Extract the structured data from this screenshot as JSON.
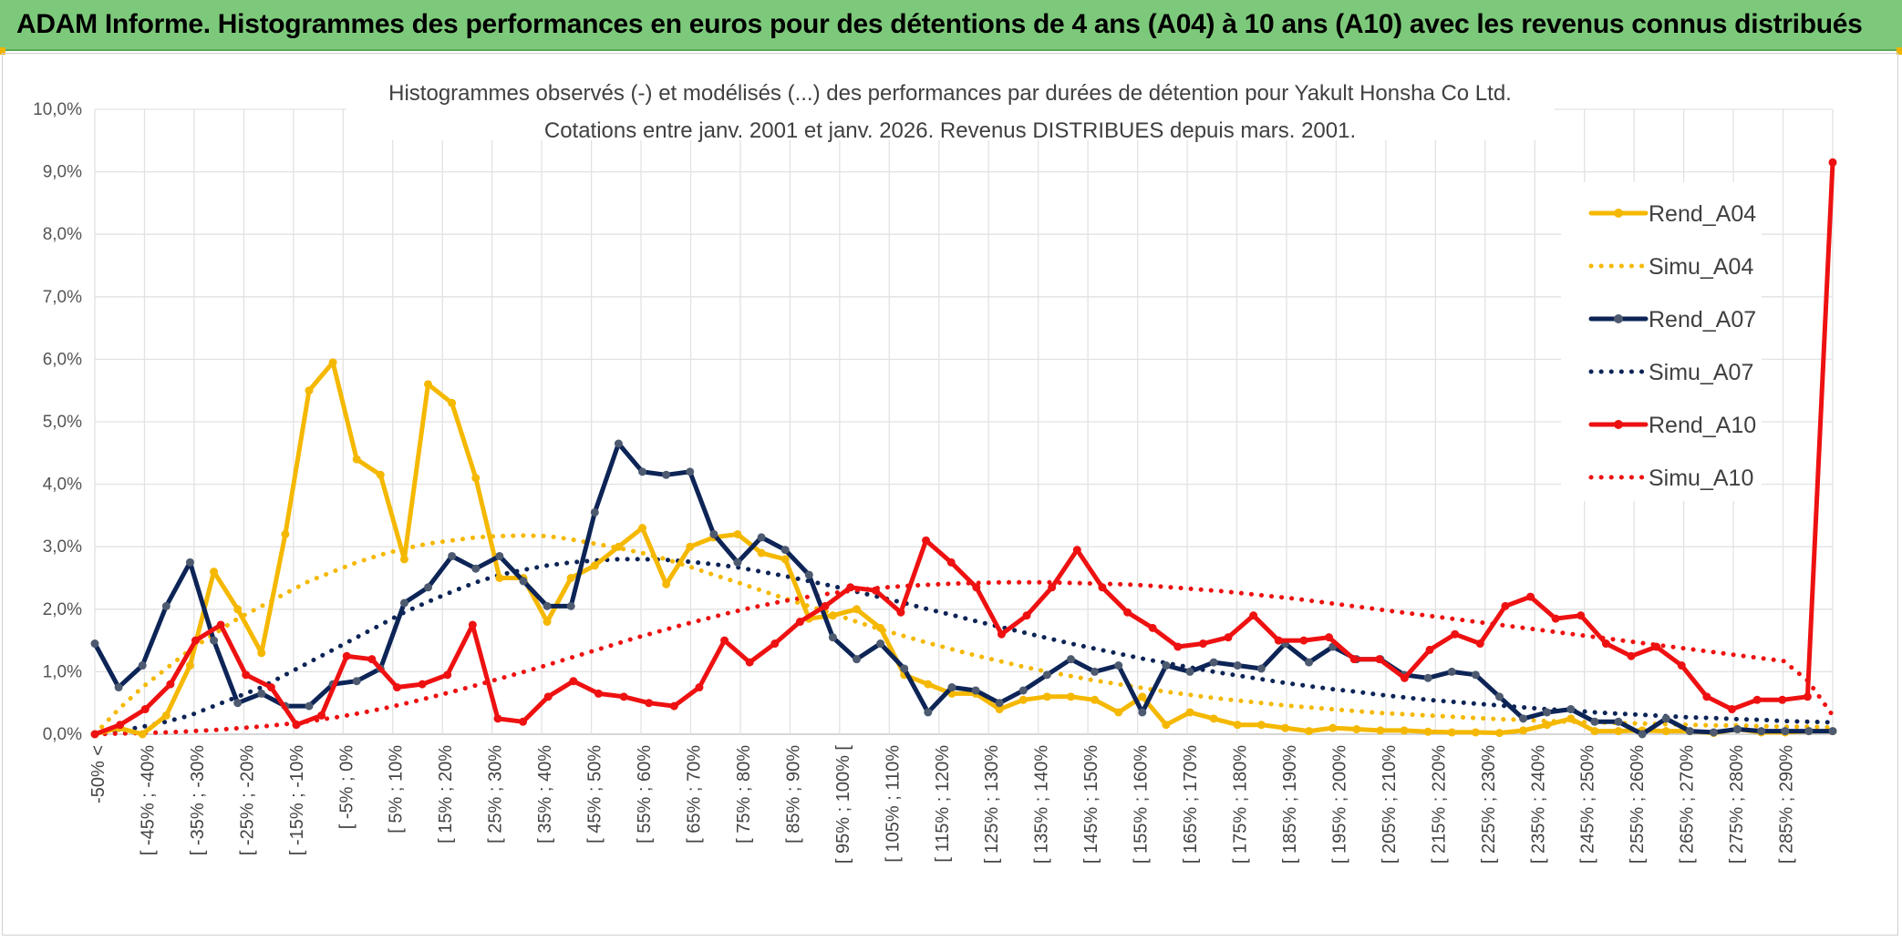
{
  "banner": {
    "title": "ADAM Informe. Histogrammes des performances en euros pour des détentions de 4 ans (A04) à 10 ans (A10) avec les revenus connus distribués"
  },
  "chart_data": {
    "type": "line",
    "title": "Histogrammes observés (-) et modélisés (...) des performances par durées de détention pour Yakult Honsha Co Ltd.",
    "subtitle": "Cotations entre janv. 2001 et janv. 2026. Revenus DISTRIBUES depuis mars. 2001.",
    "ylim": [
      0,
      10
    ],
    "yticks": [
      "0,0%",
      "1,0%",
      "2,0%",
      "3,0%",
      "4,0%",
      "5,0%",
      "6,0%",
      "7,0%",
      "8,0%",
      "9,0%",
      "10,0%"
    ],
    "xticklabels": [
      "-50% <",
      "[ -45% ; -40%",
      "[ -35% ; -30%",
      "[ -25% ; -20%",
      "[ -15% ; -10%",
      "[ -5% ; 0%",
      "[ 5% ; 10%",
      "[ 15% ; 20%",
      "[ 25% ; 30%",
      "[ 35% ; 40%",
      "[ 45% ; 50%",
      "[ 55% ; 60%",
      "[ 65% ; 70%",
      "[ 75% ; 80%",
      "[ 85% ; 90%",
      "[ 95% ; 100% [",
      "[ 105% ; 110%",
      "[ 115% ; 120%",
      "[ 125% ; 130%",
      "[ 135% ; 140%",
      "[ 145% ; 150%",
      "[ 155% ; 160%",
      "[ 165% ; 170%",
      "[ 175% ; 180%",
      "[ 185% ; 190%",
      "[ 195% ; 200%",
      "[ 205% ; 210%",
      "[ 215% ; 220%",
      "[ 225% ; 230%",
      "[ 235% ; 240%",
      "[ 245% ; 250%",
      "[ 255% ; 260%",
      "[ 265% ; 270%",
      "[ 275% ; 280%",
      "[ 285% ; 290%"
    ],
    "grid": true,
    "legend_position": "right",
    "series": [
      {
        "name": "Rend_A04",
        "style": "solid",
        "color": "#f5b800",
        "values": [
          0.0,
          0.1,
          0.0,
          0.3,
          1.1,
          2.6,
          2.0,
          1.3,
          3.2,
          5.5,
          5.95,
          4.4,
          4.15,
          2.8,
          5.6,
          5.3,
          4.1,
          2.5,
          2.5,
          1.8,
          2.5,
          2.7,
          3.0,
          3.3,
          2.4,
          3.0,
          3.15,
          3.2,
          2.9,
          2.8,
          1.85,
          1.9,
          2.0,
          1.7,
          0.95,
          0.8,
          0.65,
          0.65,
          0.4,
          0.55,
          0.6,
          0.6,
          0.55,
          0.35,
          0.6,
          0.15,
          0.35,
          0.25,
          0.15,
          0.15,
          0.1,
          0.05,
          0.1,
          0.08,
          0.06,
          0.06,
          0.04,
          0.03,
          0.03,
          0.02,
          0.06,
          0.15,
          0.25,
          0.05,
          0.05,
          0.06,
          0.05,
          0.05,
          0.02,
          0.08,
          0.03,
          0.03,
          0.05,
          0.05
        ]
      },
      {
        "name": "Simu_A04",
        "style": "dotted",
        "color": "#f5b800",
        "values": [
          0.0,
          0.4,
          0.75,
          1.05,
          1.35,
          1.6,
          1.85,
          2.05,
          2.25,
          2.45,
          2.6,
          2.75,
          2.87,
          2.97,
          3.05,
          3.1,
          3.15,
          3.17,
          3.18,
          3.17,
          3.12,
          3.05,
          2.98,
          2.9,
          2.8,
          2.68,
          2.55,
          2.43,
          2.3,
          2.17,
          2.05,
          1.93,
          1.8,
          1.68,
          1.57,
          1.46,
          1.36,
          1.26,
          1.17,
          1.08,
          1.0,
          0.93,
          0.86,
          0.8,
          0.74,
          0.68,
          0.63,
          0.58,
          0.54,
          0.5,
          0.46,
          0.43,
          0.4,
          0.37,
          0.34,
          0.32,
          0.3,
          0.28,
          0.26,
          0.24,
          0.23,
          0.21,
          0.2,
          0.19,
          0.18,
          0.17,
          0.16,
          0.15,
          0.14,
          0.14,
          0.13,
          0.12,
          0.12,
          0.11
        ]
      },
      {
        "name": "Rend_A07",
        "style": "solid",
        "color": "#0d2456",
        "values": [
          1.45,
          0.75,
          1.1,
          2.05,
          2.75,
          1.5,
          0.5,
          0.65,
          0.45,
          0.45,
          0.8,
          0.85,
          1.05,
          2.1,
          2.35,
          2.85,
          2.65,
          2.85,
          2.45,
          2.05,
          2.05,
          3.55,
          4.65,
          4.2,
          4.15,
          4.2,
          3.2,
          2.75,
          3.15,
          2.95,
          2.55,
          1.55,
          1.2,
          1.45,
          1.05,
          0.35,
          0.75,
          0.7,
          0.5,
          0.7,
          0.95,
          1.2,
          1.0,
          1.1,
          0.35,
          1.1,
          1.0,
          1.15,
          1.1,
          1.05,
          1.45,
          1.15,
          1.4,
          1.2,
          1.2,
          0.95,
          0.9,
          1.0,
          0.95,
          0.6,
          0.25,
          0.35,
          0.4,
          0.2,
          0.2,
          0.0,
          0.25,
          0.05,
          0.03,
          0.08,
          0.05,
          0.05,
          0.05,
          0.05
        ]
      },
      {
        "name": "Simu_A07",
        "style": "dotted",
        "color": "#0d2456",
        "values": [
          0.0,
          0.05,
          0.12,
          0.2,
          0.3,
          0.45,
          0.6,
          0.75,
          0.95,
          1.15,
          1.35,
          1.55,
          1.75,
          1.95,
          2.12,
          2.28,
          2.43,
          2.55,
          2.63,
          2.7,
          2.75,
          2.78,
          2.8,
          2.8,
          2.79,
          2.76,
          2.72,
          2.67,
          2.6,
          2.53,
          2.45,
          2.37,
          2.28,
          2.19,
          2.1,
          2.0,
          1.91,
          1.81,
          1.72,
          1.63,
          1.54,
          1.45,
          1.37,
          1.29,
          1.21,
          1.14,
          1.07,
          1.0,
          0.94,
          0.88,
          0.82,
          0.77,
          0.72,
          0.68,
          0.63,
          0.59,
          0.55,
          0.52,
          0.49,
          0.46,
          0.43,
          0.4,
          0.38,
          0.35,
          0.33,
          0.31,
          0.29,
          0.27,
          0.26,
          0.24,
          0.23,
          0.21,
          0.2,
          0.19
        ]
      },
      {
        "name": "Rend_A10",
        "style": "solid",
        "color": "#ee1111",
        "values": [
          0.0,
          0.15,
          0.4,
          0.8,
          1.5,
          1.75,
          0.95,
          0.75,
          0.15,
          0.3,
          1.25,
          1.2,
          0.75,
          0.8,
          0.95,
          1.75,
          0.25,
          0.2,
          0.6,
          0.85,
          0.65,
          0.6,
          0.5,
          0.45,
          0.75,
          1.5,
          1.15,
          1.45,
          1.8,
          2.05,
          2.35,
          2.3,
          1.95,
          3.1,
          2.75,
          2.35,
          1.6,
          1.9,
          2.35,
          2.95,
          2.35,
          1.95,
          1.7,
          1.4,
          1.45,
          1.55,
          1.9,
          1.5,
          1.5,
          1.55,
          1.2,
          1.2,
          0.9,
          1.35,
          1.6,
          1.45,
          2.05,
          2.2,
          1.85,
          1.9,
          1.45,
          1.25,
          1.4,
          1.1,
          0.6,
          0.4,
          0.55,
          0.55,
          0.6,
          9.15
        ]
      },
      {
        "name": "Simu_A10",
        "style": "dotted",
        "color": "#ee1111",
        "values": [
          0.0,
          0.01,
          0.02,
          0.03,
          0.05,
          0.07,
          0.1,
          0.13,
          0.17,
          0.22,
          0.28,
          0.35,
          0.43,
          0.52,
          0.62,
          0.72,
          0.83,
          0.94,
          1.05,
          1.17,
          1.29,
          1.41,
          1.53,
          1.64,
          1.75,
          1.85,
          1.95,
          2.04,
          2.12,
          2.19,
          2.25,
          2.3,
          2.34,
          2.37,
          2.39,
          2.41,
          2.42,
          2.43,
          2.43,
          2.43,
          2.42,
          2.41,
          2.4,
          2.38,
          2.35,
          2.32,
          2.29,
          2.25,
          2.21,
          2.17,
          2.12,
          2.07,
          2.02,
          1.97,
          1.92,
          1.87,
          1.82,
          1.77,
          1.72,
          1.67,
          1.62,
          1.57,
          1.52,
          1.47,
          1.42,
          1.37,
          1.32,
          1.27,
          1.22,
          1.17,
          0.85,
          0.3
        ]
      }
    ]
  }
}
